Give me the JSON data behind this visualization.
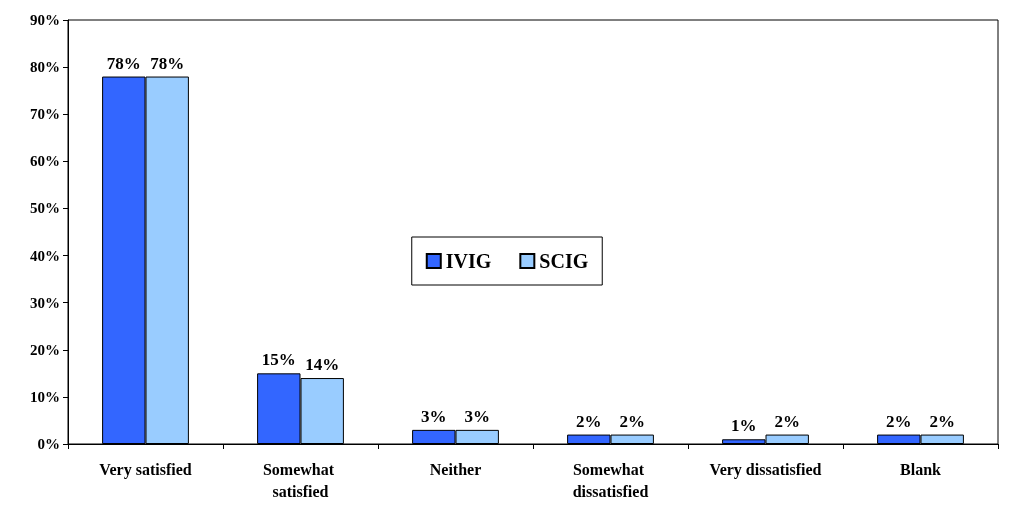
{
  "chart_data": {
    "type": "bar",
    "categories": [
      "Very satisfied",
      "Somewhat satisfied",
      "Neither",
      "Somewhat dissatisfied",
      "Very dissatisfied",
      "Blank"
    ],
    "series": [
      {
        "name": "IVIG",
        "color": "#3366ff",
        "values": [
          78,
          15,
          3,
          2,
          1,
          2
        ],
        "value_labels": [
          "78%",
          "15%",
          "3%",
          "2%",
          "1%",
          "2%"
        ]
      },
      {
        "name": "SCIG",
        "color": "#99ccff",
        "values": [
          78,
          14,
          3,
          2,
          2,
          2
        ],
        "value_labels": [
          "78%",
          "14%",
          "3%",
          "2%",
          "2%",
          "2%"
        ]
      }
    ],
    "ylim": [
      0,
      90
    ],
    "yticks": [
      {
        "value": 0,
        "label": "0%"
      },
      {
        "value": 10,
        "label": "10%"
      },
      {
        "value": 20,
        "label": "20%"
      },
      {
        "value": 30,
        "label": "30%"
      },
      {
        "value": 40,
        "label": "40%"
      },
      {
        "value": 50,
        "label": "50%"
      },
      {
        "value": 60,
        "label": "60%"
      },
      {
        "value": 70,
        "label": "70%"
      },
      {
        "value": 80,
        "label": "80%"
      },
      {
        "value": 90,
        "label": "90%"
      }
    ],
    "grid": false,
    "legend": "center"
  }
}
